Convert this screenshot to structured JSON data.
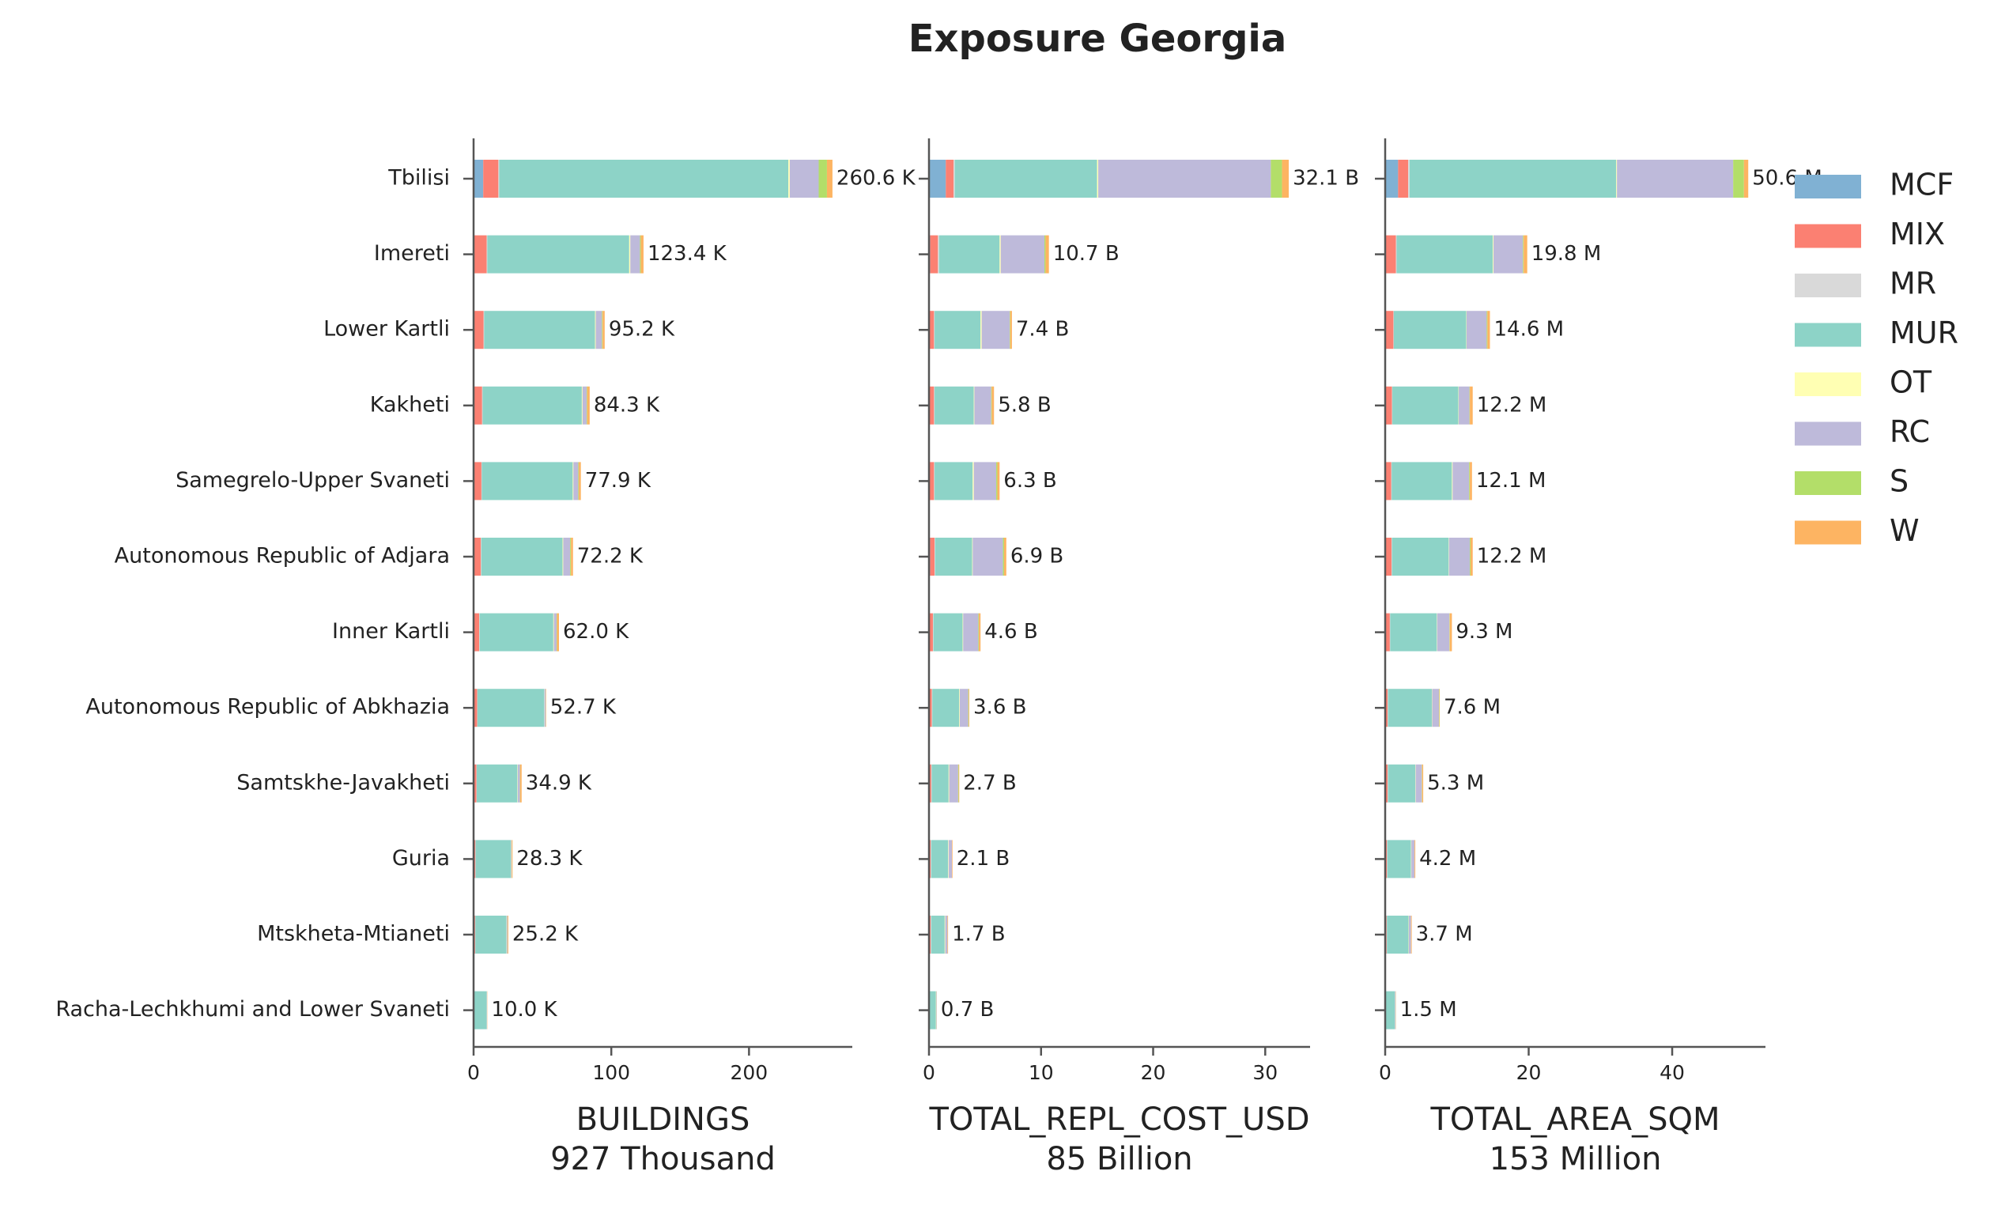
{
  "chart_data": {
    "type": "bar",
    "orientation": "horizontal",
    "title": "Exposure Georgia",
    "legend": "right",
    "categories": [
      "Tbilisi",
      "Imereti",
      "Lower Kartli",
      "Kakheti",
      "Samegrelo-Upper Svaneti",
      "Autonomous Republic of Adjara",
      "Inner Kartli",
      "Autonomous Republic of Abkhazia",
      "Samtskhe-Javakheti",
      "Guria",
      "Mtskheta-Mtianeti",
      "Racha-Lechkhumi and Lower Svaneti"
    ],
    "series": [
      {
        "name": "MCF",
        "color": "#80b1d3"
      },
      {
        "name": "MIX",
        "color": "#fb8072"
      },
      {
        "name": "MR",
        "color": "#d9d9d9"
      },
      {
        "name": "MUR",
        "color": "#8dd3c7"
      },
      {
        "name": "OT",
        "color": "#ffffb3"
      },
      {
        "name": "RC",
        "color": "#bebada"
      },
      {
        "name": "S",
        "color": "#b3de69"
      },
      {
        "name": "W",
        "color": "#fdb462"
      }
    ],
    "panels": [
      {
        "xlabel": "BUILDINGS",
        "subtitle": "927 Thousand",
        "xlim": [
          0,
          275
        ],
        "xticks": [
          0,
          100,
          200
        ],
        "values": [
          [
            7,
            0.5,
            0.3,
            0.2,
            0.2,
            0.3,
            0.1,
            0.1,
            0.1,
            0.1,
            0.1,
            0.05
          ],
          [
            11,
            9,
            7,
            6,
            5.5,
            5,
            4,
            2.5,
            2,
            1.2,
            1,
            0.4
          ],
          [
            0.6,
            0.5,
            0.4,
            0.4,
            0.3,
            0.3,
            0.3,
            0.2,
            0.2,
            0.2,
            0.2,
            0.05
          ],
          [
            210,
            103,
            80.5,
            72,
            66,
            59,
            53.5,
            48.5,
            29.5,
            25.5,
            22.5,
            9.0
          ],
          [
            1,
            0.8,
            0.5,
            0.5,
            0.5,
            0.5,
            0.4,
            0.2,
            0.3,
            0.2,
            0.2,
            0.1
          ],
          [
            21,
            7,
            4.5,
            3,
            3.5,
            5,
            2,
            0.8,
            1.5,
            0.5,
            0.6,
            0.2
          ],
          [
            6,
            0.6,
            0.5,
            0.4,
            0.4,
            0.6,
            0.3,
            0.1,
            0.2,
            0.1,
            0.1,
            0.05
          ],
          [
            4,
            2.0,
            1.5,
            1.8,
            1.5,
            1.5,
            1.4,
            0.3,
            1.1,
            0.5,
            0.5,
            0.15
          ]
        ],
        "totals": [
          260.6,
          123.4,
          95.2,
          84.3,
          77.9,
          72.2,
          62.0,
          52.7,
          34.9,
          28.3,
          25.2,
          10.0
        ],
        "value_labels": [
          "260.6 K",
          "123.4 K",
          "95.2 K",
          "84.3 K",
          "77.9 K",
          "72.2 K",
          "62.0 K",
          "52.7 K",
          "34.9 K",
          "28.3 K",
          "25.2 K",
          "10.0 K"
        ]
      },
      {
        "xlabel": "TOTAL_REPL_COST_USD",
        "subtitle": "85 Billion",
        "xlim": [
          0,
          34
        ],
        "xticks": [
          0,
          10,
          20,
          30
        ],
        "values": [
          [
            1.5,
            0.1,
            0.05,
            0.05,
            0.05,
            0.1,
            0.05,
            0.05,
            0.05,
            0.05,
            0.05,
            0.02
          ],
          [
            0.7,
            0.7,
            0.4,
            0.4,
            0.4,
            0.4,
            0.3,
            0.2,
            0.15,
            0.1,
            0.1,
            0.03
          ],
          [
            0.1,
            0.1,
            0.05,
            0.05,
            0.05,
            0.05,
            0.05,
            0.05,
            0.05,
            0.05,
            0.05,
            0.02
          ],
          [
            12.7,
            5.4,
            4.1,
            3.5,
            3.4,
            3.3,
            2.6,
            2.4,
            1.5,
            1.5,
            1.2,
            0.55
          ],
          [
            0.1,
            0.1,
            0.1,
            0.05,
            0.1,
            0.05,
            0.05,
            0.05,
            0.05,
            0.05,
            0.05,
            0.02
          ],
          [
            15.4,
            3.9,
            2.5,
            1.5,
            2.0,
            2.7,
            1.35,
            0.75,
            0.8,
            0.3,
            0.2,
            0.04
          ],
          [
            1.0,
            0.1,
            0.05,
            0.05,
            0.1,
            0.1,
            0.05,
            0.05,
            0.05,
            0,
            0,
            0.01
          ],
          [
            0.6,
            0.3,
            0.15,
            0.2,
            0.2,
            0.2,
            0.15,
            0.05,
            0.05,
            0.05,
            0.05,
            0.01
          ]
        ],
        "totals": [
          32.1,
          10.7,
          7.4,
          5.8,
          6.3,
          6.9,
          4.6,
          3.6,
          2.7,
          2.1,
          1.7,
          0.7
        ],
        "value_labels": [
          "32.1 B",
          "10.7 B",
          "7.4 B",
          "5.8 B",
          "6.3 B",
          "6.9 B",
          "4.6 B",
          "3.6 B",
          "2.7 B",
          "2.1 B",
          "1.7 B",
          "0.7 B"
        ]
      },
      {
        "xlabel": "TOTAL_AREA_SQM",
        "subtitle": "153 Million",
        "xlim": [
          0,
          53
        ],
        "xticks": [
          0,
          20,
          40
        ],
        "values": [
          [
            1.8,
            0.1,
            0.05,
            0.05,
            0.05,
            0.1,
            0.05,
            0.05,
            0.05,
            0.05,
            0.05,
            0.02
          ],
          [
            1.4,
            1.4,
            1.1,
            0.9,
            0.8,
            0.8,
            0.6,
            0.3,
            0.3,
            0.2,
            0.15,
            0.05
          ],
          [
            0.2,
            0.1,
            0.05,
            0.05,
            0.05,
            0.05,
            0.05,
            0.05,
            0.05,
            0.05,
            0.05,
            0.02
          ],
          [
            28.8,
            13.4,
            10.1,
            9.2,
            8.4,
            7.9,
            6.5,
            6.1,
            3.8,
            3.3,
            3.0,
            1.25
          ],
          [
            0.1,
            0.1,
            0.05,
            0.05,
            0.1,
            0.05,
            0.05,
            0.05,
            0.05,
            0.05,
            0.05,
            0.02
          ],
          [
            16.2,
            4.1,
            2.8,
            1.5,
            2.3,
            2.9,
            1.7,
            0.95,
            0.85,
            0.45,
            0.3,
            0.1
          ],
          [
            1.5,
            0.1,
            0.1,
            0.05,
            0.1,
            0.1,
            0.05,
            0.05,
            0.05,
            0,
            0,
            0.02
          ],
          [
            0.6,
            0.5,
            0.35,
            0.4,
            0.3,
            0.3,
            0.3,
            0.05,
            0.15,
            0.1,
            0.1,
            0.02
          ]
        ],
        "totals": [
          50.6,
          19.8,
          14.6,
          12.2,
          12.1,
          12.2,
          9.3,
          7.6,
          5.3,
          4.2,
          3.7,
          1.5
        ],
        "value_labels": [
          "50.6 M",
          "19.8 M",
          "14.6 M",
          "12.2 M",
          "12.1 M",
          "12.2 M",
          "9.3 M",
          "7.6 M",
          "5.3 M",
          "4.2 M",
          "3.7 M",
          "1.5 M"
        ]
      }
    ]
  }
}
